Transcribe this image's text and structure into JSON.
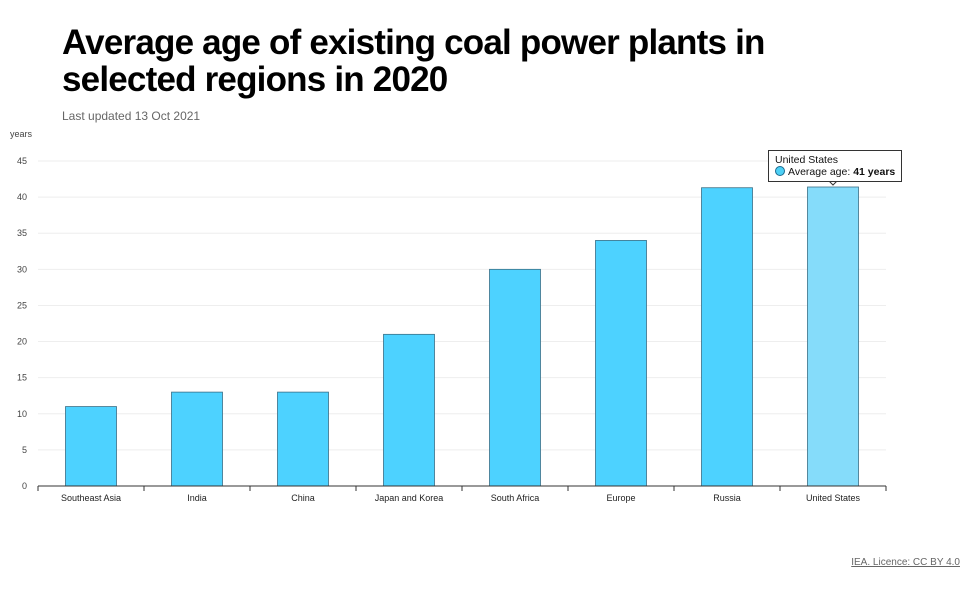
{
  "title": "Average age of existing coal power plants in selected regions in 2020",
  "subtitle": "Last updated 13 Oct 2021",
  "credit": "IEA. Licence: CC BY 4.0",
  "tooltip": {
    "region": "United States",
    "label": "Average age:",
    "value": "41 years"
  },
  "colors": {
    "bar": "#4dd2ff",
    "bar_highlight": "#85dcfa",
    "bar_stroke": "#3a6f86"
  },
  "chart_data": {
    "type": "bar",
    "title": "Average age of existing coal power plants in selected regions in 2020",
    "ylabel": "years",
    "xlabel": "",
    "ylim": [
      0,
      45
    ],
    "yticks": [
      0,
      5,
      10,
      15,
      20,
      25,
      30,
      35,
      40,
      45
    ],
    "grid": true,
    "categories": [
      "Southeast Asia",
      "India",
      "China",
      "Japan and Korea",
      "South Africa",
      "Europe",
      "Russia",
      "United States"
    ],
    "values": [
      11,
      13,
      13,
      21,
      30,
      34,
      41.3,
      41.4
    ],
    "highlighted": "United States"
  }
}
